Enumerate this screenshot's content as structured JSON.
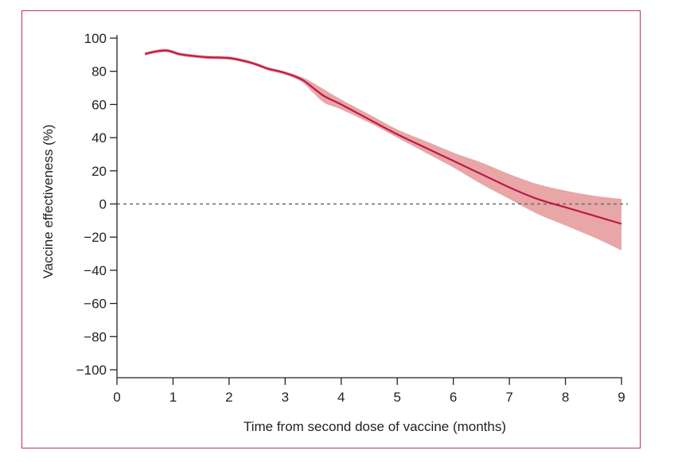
{
  "chart_data": {
    "type": "line",
    "title": "",
    "xlabel": "Time from second dose of vaccine (months)",
    "ylabel": "Vaccine effectiveness (%)",
    "xlim": [
      0,
      9
    ],
    "ylim": [
      -100,
      100
    ],
    "x_ticks": [
      0,
      1,
      2,
      3,
      4,
      5,
      6,
      7,
      8,
      9
    ],
    "y_ticks": [
      100,
      80,
      60,
      40,
      20,
      0,
      -20,
      -40,
      -60,
      -80,
      -100
    ],
    "reference_line": {
      "y": 0,
      "style": "dashed"
    },
    "series": [
      {
        "name": "Vaccine effectiveness",
        "x": [
          0.5,
          0.7,
          0.9,
          1.1,
          1.3,
          1.6,
          2.0,
          2.3,
          2.5,
          2.7,
          3.0,
          3.3,
          3.5,
          3.7,
          4.0,
          4.5,
          5.0,
          5.5,
          6.0,
          6.5,
          7.0,
          7.5,
          8.0,
          8.5,
          9.0
        ],
        "y": [
          90.5,
          92,
          92.5,
          90.5,
          89.5,
          88.5,
          88,
          86,
          84,
          81.5,
          79,
          75,
          70,
          65,
          60,
          51,
          42,
          34,
          26,
          18,
          10,
          3,
          -2,
          -7,
          -12
        ],
        "lower": [
          89.5,
          91,
          91.5,
          89.5,
          88.5,
          87.5,
          87,
          85,
          83,
          80.5,
          78,
          73.5,
          67,
          61,
          57,
          49,
          40,
          31,
          22,
          12,
          3,
          -6,
          -13,
          -20,
          -28
        ],
        "upper": [
          91.5,
          93,
          93.5,
          91.5,
          90.5,
          89.5,
          89,
          87,
          85,
          82.5,
          80,
          76.5,
          73,
          69,
          63,
          54,
          45,
          38,
          31,
          25,
          18,
          12,
          8,
          5,
          3
        ]
      }
    ],
    "colors": {
      "line": "#c0174a",
      "band": "#e8a6a6",
      "reference": "#5e6e6e",
      "axis": "#222222"
    }
  }
}
